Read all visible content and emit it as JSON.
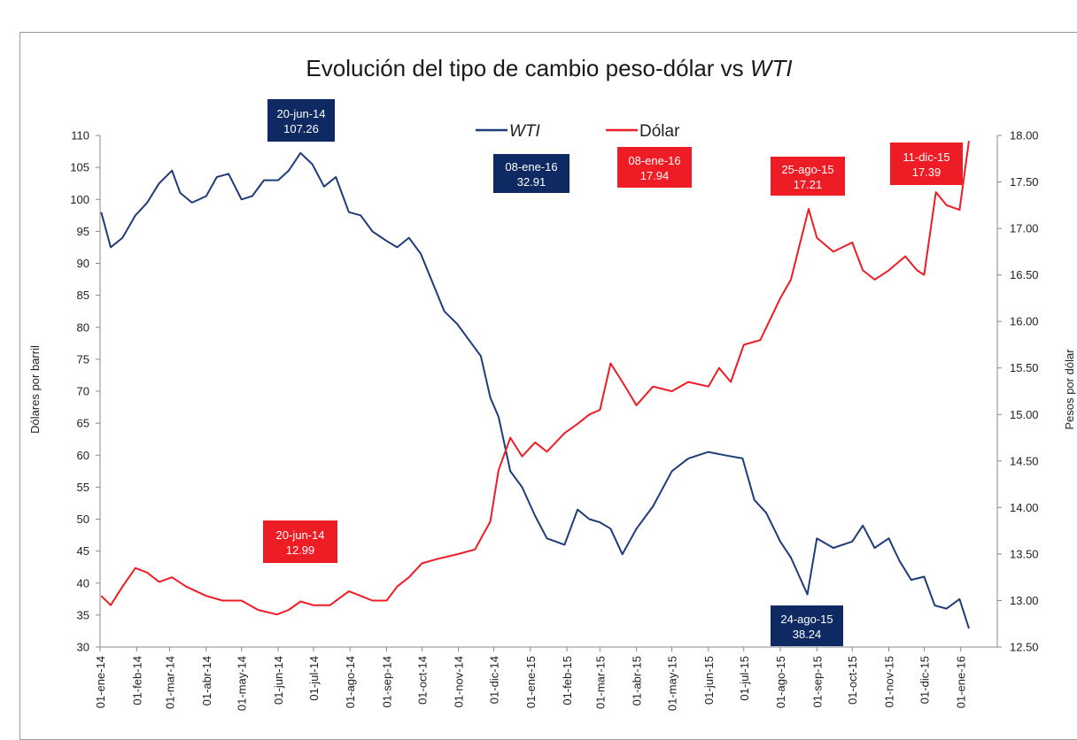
{
  "chart_data": {
    "type": "line",
    "title": "Evolución del tipo de cambio peso-dólar vs ",
    "title_italic": "WTI",
    "ylabel_left": "Dólares por barril",
    "ylabel_right": "Pesos por dólar",
    "ylim_left": [
      30,
      110
    ],
    "ylim_right": [
      12.5,
      18.0
    ],
    "yticks_left": [
      "110",
      "105",
      "100",
      "95",
      "90",
      "85",
      "80",
      "75",
      "70",
      "65",
      "60",
      "55",
      "50",
      "45",
      "40",
      "35",
      "30"
    ],
    "yticks_right": [
      "18.00",
      "17.50",
      "17.00",
      "16.50",
      "16.00",
      "15.50",
      "15.00",
      "14.50",
      "14.00",
      "13.50",
      "13.00",
      "12.50"
    ],
    "xticks": [
      "01-ene-14",
      "01-feb-14",
      "01-mar-14",
      "01-abr-14",
      "01-may-14",
      "01-jun-14",
      "01-jul-14",
      "01-ago-14",
      "01-sep-14",
      "01-oct-14",
      "01-nov-14",
      "01-dic-14",
      "01-ene-15",
      "01-feb-15",
      "01-mar-15",
      "01-abr-15",
      "01-may-15",
      "01-jun-15",
      "01-jul-15",
      "01-ago-15",
      "01-sep-15",
      "01-oct-15",
      "01-nov-15",
      "01-dic-15",
      "01-ene-16"
    ],
    "legend": {
      "position": "top-center"
    },
    "grid": false,
    "series": [
      {
        "name": "WTI",
        "axis": "left",
        "color": "#1f3c78",
        "italic": true,
        "points": [
          [
            "2014-01-02",
            98.0
          ],
          [
            "2014-01-10",
            92.5
          ],
          [
            "2014-01-20",
            94.0
          ],
          [
            "2014-01-31",
            97.5
          ],
          [
            "2014-02-10",
            99.5
          ],
          [
            "2014-02-20",
            102.5
          ],
          [
            "2014-03-03",
            104.5
          ],
          [
            "2014-03-10",
            101.0
          ],
          [
            "2014-03-20",
            99.5
          ],
          [
            "2014-04-01",
            100.5
          ],
          [
            "2014-04-10",
            103.5
          ],
          [
            "2014-04-20",
            104.0
          ],
          [
            "2014-05-01",
            100.0
          ],
          [
            "2014-05-10",
            100.5
          ],
          [
            "2014-05-20",
            103.0
          ],
          [
            "2014-06-01",
            103.0
          ],
          [
            "2014-06-10",
            104.5
          ],
          [
            "2014-06-20",
            107.26
          ],
          [
            "2014-06-30",
            105.5
          ],
          [
            "2014-07-10",
            102.0
          ],
          [
            "2014-07-20",
            103.5
          ],
          [
            "2014-07-31",
            98.0
          ],
          [
            "2014-08-10",
            97.5
          ],
          [
            "2014-08-20",
            95.0
          ],
          [
            "2014-09-01",
            93.5
          ],
          [
            "2014-09-10",
            92.5
          ],
          [
            "2014-09-20",
            94.0
          ],
          [
            "2014-09-30",
            91.5
          ],
          [
            "2014-10-10",
            87.0
          ],
          [
            "2014-10-20",
            82.5
          ],
          [
            "2014-10-31",
            80.5
          ],
          [
            "2014-11-10",
            78.0
          ],
          [
            "2014-11-20",
            75.5
          ],
          [
            "2014-11-28",
            69.0
          ],
          [
            "2014-12-05",
            66.0
          ],
          [
            "2014-12-15",
            57.5
          ],
          [
            "2014-12-25",
            55.0
          ],
          [
            "2015-01-05",
            50.5
          ],
          [
            "2015-01-15",
            47.0
          ],
          [
            "2015-01-30",
            46.0
          ],
          [
            "2015-02-10",
            51.5
          ],
          [
            "2015-02-20",
            50.0
          ],
          [
            "2015-03-01",
            49.5
          ],
          [
            "2015-03-10",
            48.5
          ],
          [
            "2015-03-20",
            44.5
          ],
          [
            "2015-04-01",
            48.5
          ],
          [
            "2015-04-15",
            52.0
          ],
          [
            "2015-05-01",
            57.5
          ],
          [
            "2015-05-15",
            59.5
          ],
          [
            "2015-06-01",
            60.5
          ],
          [
            "2015-06-15",
            60.0
          ],
          [
            "2015-06-30",
            59.5
          ],
          [
            "2015-07-10",
            53.0
          ],
          [
            "2015-07-20",
            51.0
          ],
          [
            "2015-08-01",
            46.5
          ],
          [
            "2015-08-10",
            44.0
          ],
          [
            "2015-08-24",
            38.24
          ],
          [
            "2015-09-01",
            47.0
          ],
          [
            "2015-09-15",
            45.5
          ],
          [
            "2015-10-01",
            46.5
          ],
          [
            "2015-10-10",
            49.0
          ],
          [
            "2015-10-20",
            45.5
          ],
          [
            "2015-11-01",
            47.0
          ],
          [
            "2015-11-10",
            43.5
          ],
          [
            "2015-11-20",
            40.5
          ],
          [
            "2015-12-01",
            41.0
          ],
          [
            "2015-12-10",
            36.5
          ],
          [
            "2015-12-20",
            36.0
          ],
          [
            "2015-12-31",
            37.5
          ],
          [
            "2016-01-08",
            32.91
          ]
        ]
      },
      {
        "name": "Dólar",
        "axis": "right",
        "color": "#ee1c25",
        "italic": false,
        "points": [
          [
            "2014-01-02",
            13.05
          ],
          [
            "2014-01-10",
            12.95
          ],
          [
            "2014-01-20",
            13.15
          ],
          [
            "2014-01-31",
            13.35
          ],
          [
            "2014-02-10",
            13.3
          ],
          [
            "2014-02-20",
            13.2
          ],
          [
            "2014-03-03",
            13.25
          ],
          [
            "2014-03-15",
            13.15
          ],
          [
            "2014-04-01",
            13.05
          ],
          [
            "2014-04-15",
            13.0
          ],
          [
            "2014-05-01",
            13.0
          ],
          [
            "2014-05-15",
            12.9
          ],
          [
            "2014-05-31",
            12.85
          ],
          [
            "2014-06-10",
            12.9
          ],
          [
            "2014-06-20",
            12.99
          ],
          [
            "2014-07-01",
            12.95
          ],
          [
            "2014-07-15",
            12.95
          ],
          [
            "2014-07-31",
            13.1
          ],
          [
            "2014-08-10",
            13.05
          ],
          [
            "2014-08-20",
            13.0
          ],
          [
            "2014-09-01",
            13.0
          ],
          [
            "2014-09-10",
            13.15
          ],
          [
            "2014-09-20",
            13.25
          ],
          [
            "2014-10-01",
            13.4
          ],
          [
            "2014-10-15",
            13.45
          ],
          [
            "2014-11-01",
            13.5
          ],
          [
            "2014-11-15",
            13.55
          ],
          [
            "2014-11-28",
            13.85
          ],
          [
            "2014-12-05",
            14.4
          ],
          [
            "2014-12-15",
            14.75
          ],
          [
            "2014-12-25",
            14.55
          ],
          [
            "2015-01-05",
            14.7
          ],
          [
            "2015-01-15",
            14.6
          ],
          [
            "2015-01-30",
            14.8
          ],
          [
            "2015-02-10",
            14.9
          ],
          [
            "2015-02-20",
            15.0
          ],
          [
            "2015-03-01",
            15.05
          ],
          [
            "2015-03-10",
            15.55
          ],
          [
            "2015-03-20",
            15.35
          ],
          [
            "2015-04-01",
            15.1
          ],
          [
            "2015-04-15",
            15.3
          ],
          [
            "2015-05-01",
            15.25
          ],
          [
            "2015-05-15",
            15.35
          ],
          [
            "2015-06-01",
            15.3
          ],
          [
            "2015-06-10",
            15.5
          ],
          [
            "2015-06-20",
            15.35
          ],
          [
            "2015-07-01",
            15.75
          ],
          [
            "2015-07-15",
            15.8
          ],
          [
            "2015-08-01",
            16.25
          ],
          [
            "2015-08-10",
            16.45
          ],
          [
            "2015-08-25",
            17.21
          ],
          [
            "2015-09-01",
            16.9
          ],
          [
            "2015-09-15",
            16.75
          ],
          [
            "2015-10-01",
            16.85
          ],
          [
            "2015-10-10",
            16.55
          ],
          [
            "2015-10-20",
            16.45
          ],
          [
            "2015-11-01",
            16.55
          ],
          [
            "2015-11-15",
            16.7
          ],
          [
            "2015-11-25",
            16.55
          ],
          [
            "2015-12-01",
            16.5
          ],
          [
            "2015-12-11",
            17.39
          ],
          [
            "2015-12-20",
            17.25
          ],
          [
            "2015-12-31",
            17.2
          ],
          [
            "2016-01-08",
            17.94
          ]
        ]
      }
    ],
    "annotations": [
      {
        "label": "20-jun-14",
        "value": "107.26",
        "color": "#0f2a63"
      },
      {
        "label": "08-ene-16",
        "value": "32.91",
        "color": "#0f2a63"
      },
      {
        "label": "08-ene-16",
        "value": "17.94",
        "color": "#ee1c25"
      },
      {
        "label": "25-ago-15",
        "value": "17.21",
        "color": "#ee1c25"
      },
      {
        "label": "11-dic-15",
        "value": "17.39",
        "color": "#ee1c25"
      },
      {
        "label": "20-jun-14",
        "value": "12.99",
        "color": "#ee1c25"
      },
      {
        "label": "24-ago-15",
        "value": "38.24",
        "color": "#0f2a63"
      }
    ]
  }
}
